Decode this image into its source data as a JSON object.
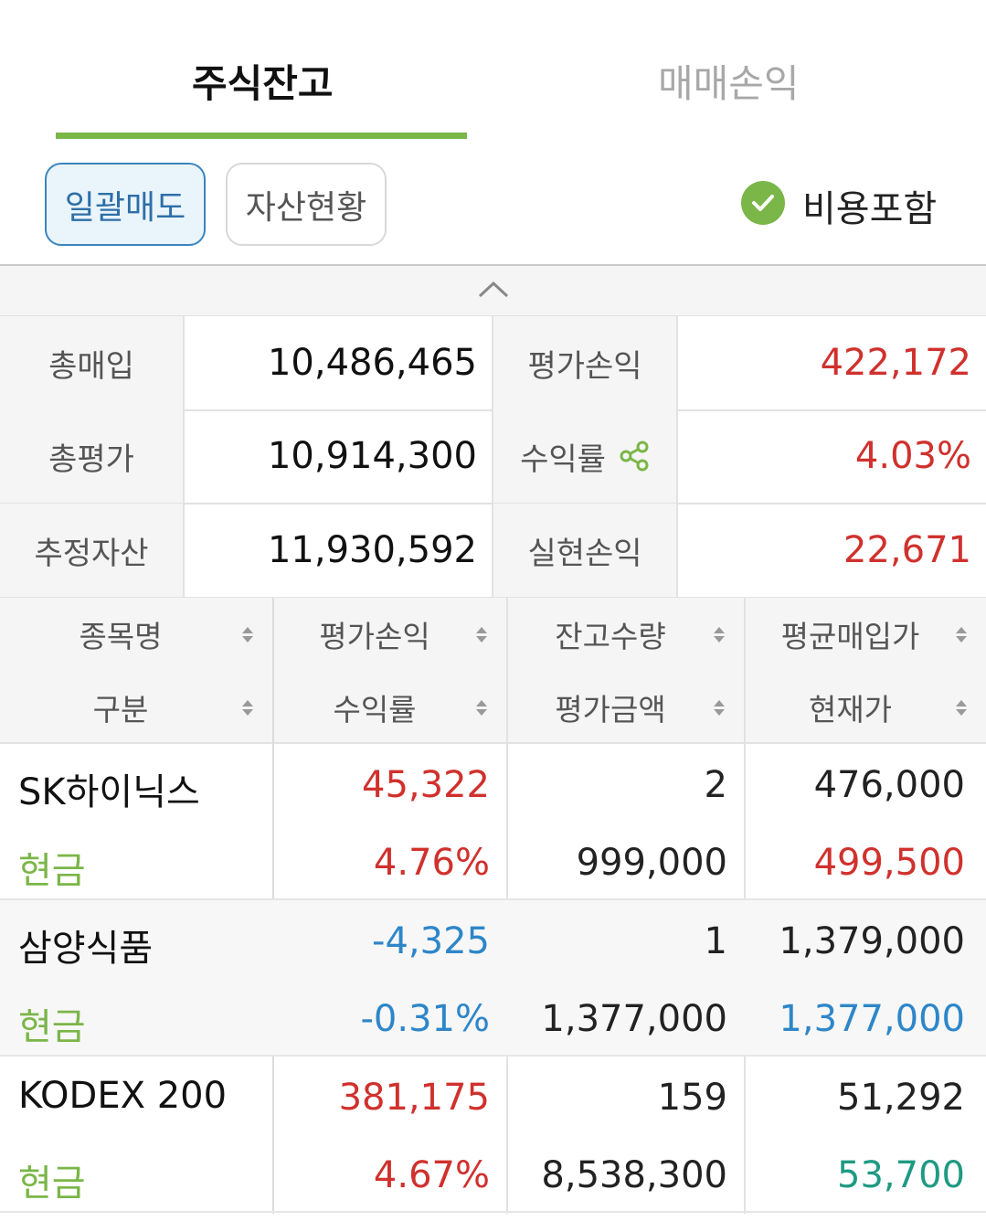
{
  "tabs": {
    "active": "주식잔고",
    "inactive": "매매손익"
  },
  "buttons": {
    "bulk_sell": "일괄매도",
    "asset_status": "자산현황"
  },
  "fee_toggle": {
    "label": "비용포함",
    "checked": true,
    "icon": "check-circle-icon"
  },
  "collapse_icon": "chevron-up-icon",
  "summary": {
    "total_buy": {
      "label": "총매입",
      "value": "10,486,465"
    },
    "eval_pl": {
      "label": "평가손익",
      "value": "422,172"
    },
    "total_eval": {
      "label": "총평가",
      "value": "10,914,300"
    },
    "return_rate": {
      "label": "수익률",
      "value": "4.03%",
      "icon": "share-icon"
    },
    "est_asset": {
      "label": "추정자산",
      "value": "11,930,592"
    },
    "realized_pl": {
      "label": "실현손익",
      "value": "22,671"
    }
  },
  "table_header": {
    "row1": [
      "종목명",
      "평가손익",
      "잔고수량",
      "평균매입가"
    ],
    "row2": [
      "구분",
      "수익률",
      "평가금액",
      "현재가"
    ]
  },
  "holdings": [
    {
      "name": "SK하이닉스",
      "kind": "현금",
      "eval_pl": "45,322",
      "return_rate": "4.76%",
      "qty": "2",
      "eval_amount": "999,000",
      "avg_price": "476,000",
      "current_price": "499,500"
    },
    {
      "name": "삼양식품",
      "kind": "현금",
      "eval_pl": "-4,325",
      "return_rate": "-0.31%",
      "qty": "1",
      "eval_amount": "1,377,000",
      "avg_price": "1,379,000",
      "current_price": "1,377,000"
    },
    {
      "name": "KODEX 200",
      "kind": "현금",
      "eval_pl": "381,175",
      "return_rate": "4.67%",
      "qty": "159",
      "eval_amount": "8,538,300",
      "avg_price": "51,292",
      "current_price": "53,700"
    }
  ],
  "colors": {
    "accent_green": "#7ab648",
    "up_red": "#d0312d",
    "down_blue": "#2e86c9",
    "price_teal": "#1f9a82"
  }
}
